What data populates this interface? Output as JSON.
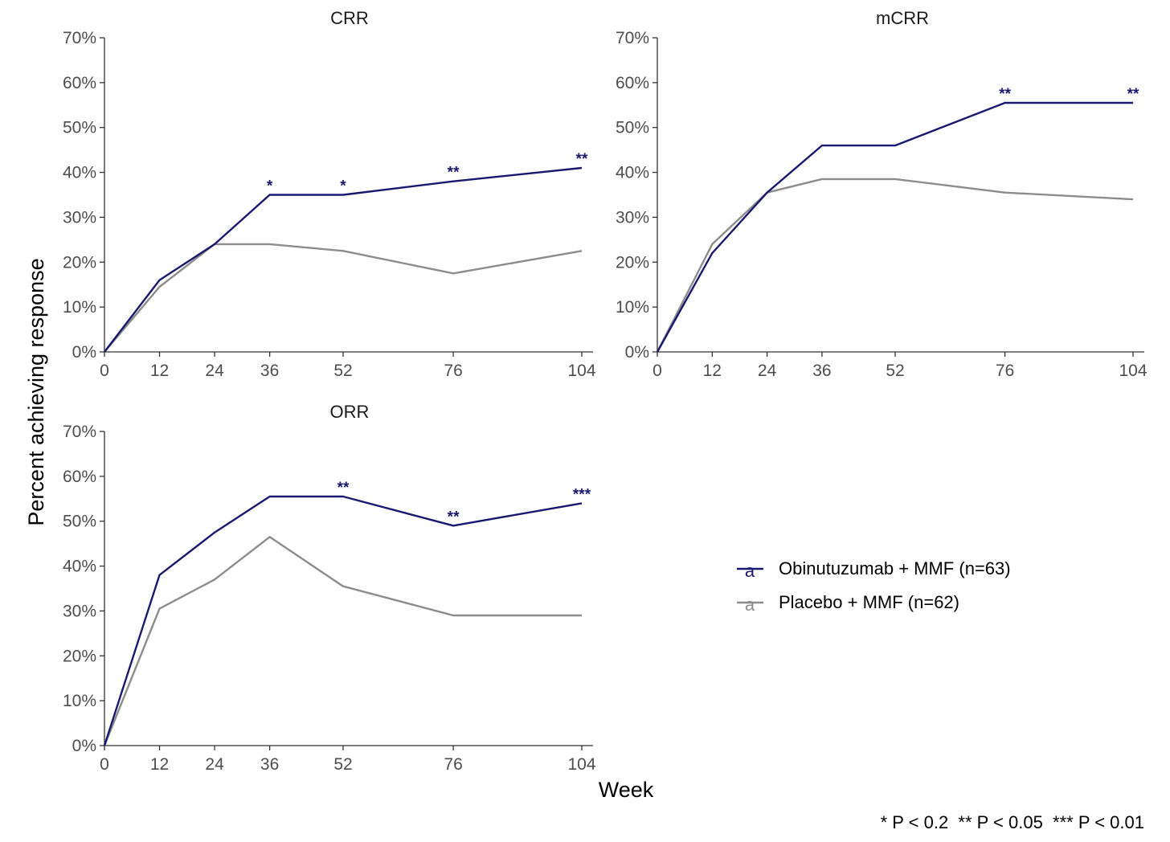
{
  "colors": {
    "obinutuzumab": "#191970",
    "placebo": "#8c8c8c",
    "axis": "#333333"
  },
  "figure": {
    "ylabel": "Percent achieving response",
    "xlabel": "Week",
    "footnote": "* P < 0.2  ** P < 0.05  *** P < 0.01"
  },
  "legend": {
    "key_glyph": "a",
    "items": [
      {
        "label": "Obinutuzumab + MMF (n=63)",
        "color_key": "obinutuzumab"
      },
      {
        "label": "Placebo + MMF (n=62)",
        "color_key": "placebo"
      }
    ]
  },
  "chart_data": [
    {
      "type": "line",
      "title": "CRR",
      "x": [
        0,
        12,
        24,
        36,
        52,
        76,
        104
      ],
      "x_ticks": [
        "0",
        "12",
        "24",
        "36",
        "52",
        "76",
        "104"
      ],
      "y_ticks": [
        "0%",
        "10%",
        "20%",
        "30%",
        "40%",
        "50%",
        "60%",
        "70%"
      ],
      "ylim": [
        0,
        70
      ],
      "series": [
        {
          "name": "Obinutuzumab + MMF (n=63)",
          "color_key": "obinutuzumab",
          "values": [
            0,
            16,
            24,
            35,
            35,
            38,
            41
          ]
        },
        {
          "name": "Placebo + MMF (n=62)",
          "color_key": "placebo",
          "values": [
            0,
            14.5,
            24,
            24,
            22.5,
            17.5,
            22.5
          ]
        }
      ],
      "significance": [
        {
          "x": 36,
          "label": "*"
        },
        {
          "x": 52,
          "label": "*"
        },
        {
          "x": 76,
          "label": "**"
        },
        {
          "x": 104,
          "label": "**"
        }
      ]
    },
    {
      "type": "line",
      "title": "mCRR",
      "x": [
        0,
        12,
        24,
        36,
        52,
        76,
        104
      ],
      "x_ticks": [
        "0",
        "12",
        "24",
        "36",
        "52",
        "76",
        "104"
      ],
      "y_ticks": [
        "0%",
        "10%",
        "20%",
        "30%",
        "40%",
        "50%",
        "60%",
        "70%"
      ],
      "ylim": [
        0,
        70
      ],
      "series": [
        {
          "name": "Obinutuzumab + MMF (n=63)",
          "color_key": "obinutuzumab",
          "values": [
            0,
            22,
            35.5,
            46,
            46,
            55.5,
            55.5
          ]
        },
        {
          "name": "Placebo + MMF (n=62)",
          "color_key": "placebo",
          "values": [
            0,
            24,
            35.5,
            38.5,
            38.5,
            35.5,
            34
          ]
        }
      ],
      "significance": [
        {
          "x": 76,
          "label": "**"
        },
        {
          "x": 104,
          "label": "**"
        }
      ]
    },
    {
      "type": "line",
      "title": "ORR",
      "x": [
        0,
        12,
        24,
        36,
        52,
        76,
        104
      ],
      "x_ticks": [
        "0",
        "12",
        "24",
        "36",
        "52",
        "76",
        "104"
      ],
      "y_ticks": [
        "0%",
        "10%",
        "20%",
        "30%",
        "40%",
        "50%",
        "60%",
        "70%"
      ],
      "ylim": [
        0,
        70
      ],
      "series": [
        {
          "name": "Obinutuzumab + MMF (n=63)",
          "color_key": "obinutuzumab",
          "values": [
            0,
            38,
            47.5,
            55.5,
            55.5,
            49,
            54
          ]
        },
        {
          "name": "Placebo + MMF (n=62)",
          "color_key": "placebo",
          "values": [
            0,
            30.5,
            37,
            46.5,
            35.5,
            29,
            29
          ]
        }
      ],
      "significance": [
        {
          "x": 52,
          "label": "**"
        },
        {
          "x": 76,
          "label": "**"
        },
        {
          "x": 104,
          "label": "***"
        }
      ]
    }
  ]
}
